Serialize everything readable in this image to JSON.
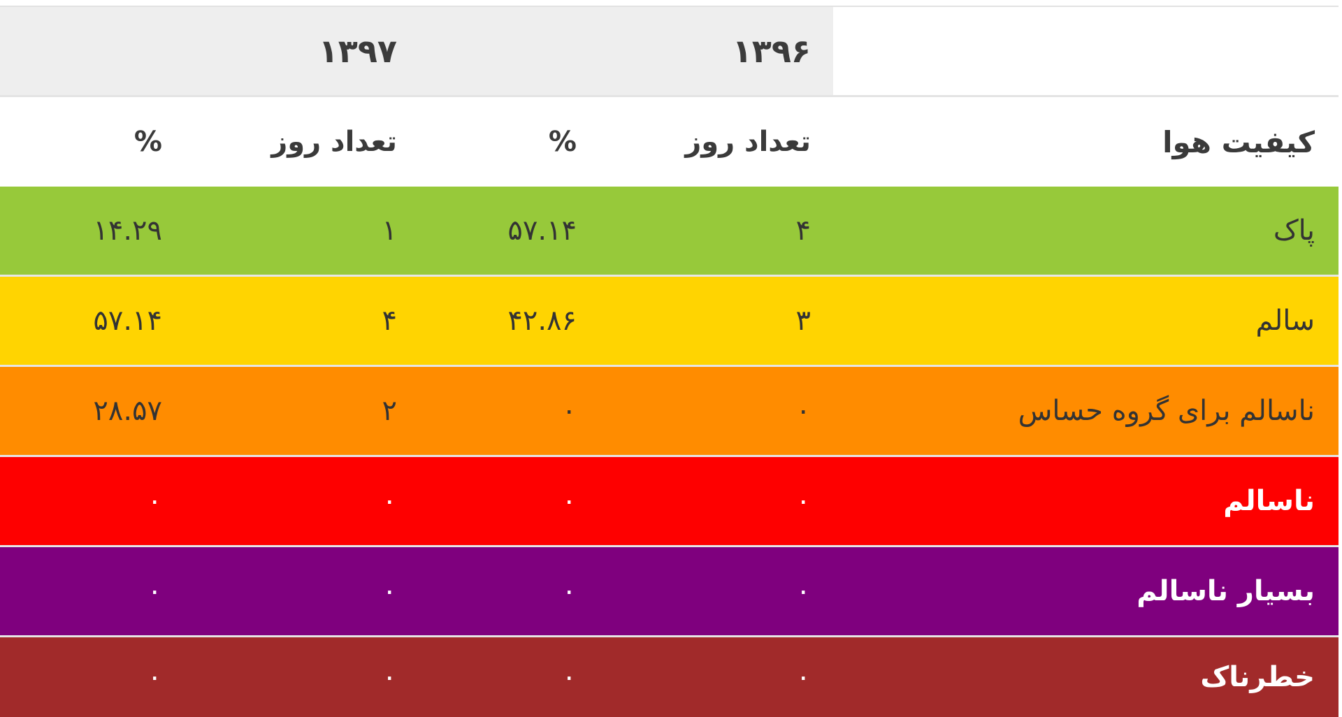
{
  "years": {
    "y1396": "۱۳۹۶",
    "y1397": "۱۳۹۷"
  },
  "headers": {
    "quality": "کیفیت هوا",
    "days_1396": "تعداد روز",
    "pct_1396": "%",
    "days_1397": "تعداد روز",
    "pct_1397": "%"
  },
  "rows": [
    {
      "label": "پاک",
      "days_1396": "۴",
      "pct_1396": "۵۷.۱۴",
      "days_1397": "۱",
      "pct_1397": "۱۴.۲۹",
      "bg": "#97c93a",
      "fg": "#333333",
      "bold": false
    },
    {
      "label": "سالم",
      "days_1396": "۳",
      "pct_1396": "۴۲.۸۶",
      "days_1397": "۴",
      "pct_1397": "۵۷.۱۴",
      "bg": "#ffd401",
      "fg": "#333333",
      "bold": false
    },
    {
      "label": "ناسالم برای گروه حساس",
      "days_1396": "۰",
      "pct_1396": "۰",
      "days_1397": "۲",
      "pct_1397": "۲۸.۵۷",
      "bg": "#ff8c00",
      "fg": "#333333",
      "bold": false
    },
    {
      "label": "ناسالم",
      "days_1396": "۰",
      "pct_1396": "۰",
      "days_1397": "۰",
      "pct_1397": "۰",
      "bg": "#fe0000",
      "fg": "#ffffff",
      "bold": true
    },
    {
      "label": "بسیار ناسالم",
      "days_1396": "۰",
      "pct_1396": "۰",
      "days_1397": "۰",
      "pct_1397": "۰",
      "bg": "#7f007e",
      "fg": "#ffffff",
      "bold": true
    },
    {
      "label": "خطرناک",
      "days_1396": "۰",
      "pct_1396": "۰",
      "days_1397": "۰",
      "pct_1397": "۰",
      "bg": "#a12a2a",
      "fg": "#ffffff",
      "bold": true
    }
  ]
}
